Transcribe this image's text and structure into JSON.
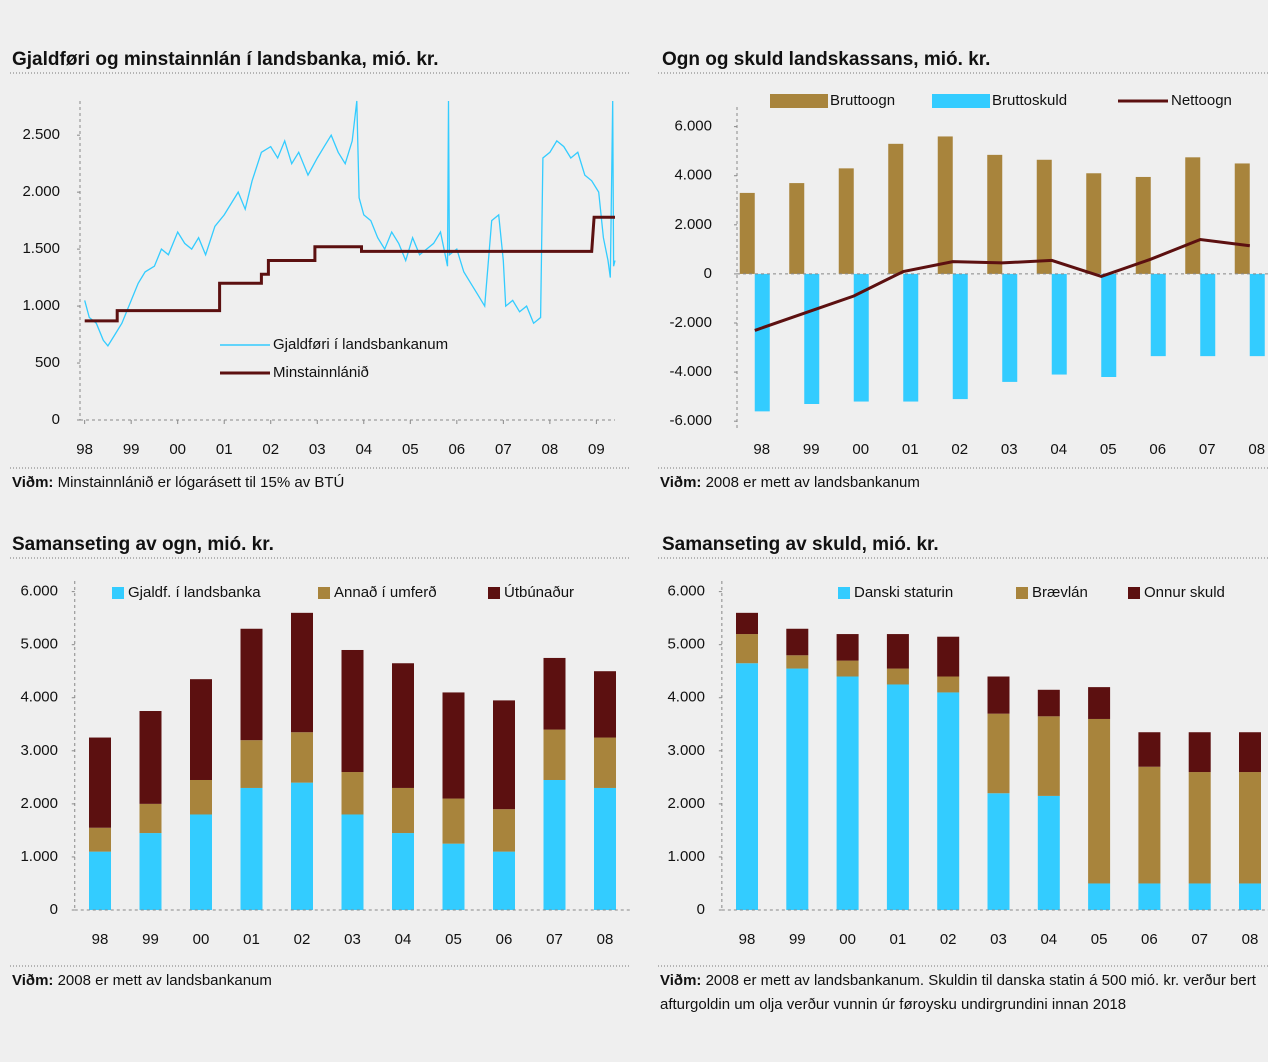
{
  "chart_data": [
    {
      "type": "line",
      "title": "Gjaldføri og minstainnlán í landsbanka, mió. kr.",
      "footnote": {
        "label": "Viðm:",
        "text": "Minstainnlánið er lógarásett til 15% av BTÚ"
      },
      "xlim": [
        1997.9,
        2009.4
      ],
      "xticks": [
        {
          "value": 1998,
          "label": "98"
        },
        {
          "value": 1999,
          "label": "99"
        },
        {
          "value": 2000,
          "label": "00"
        },
        {
          "value": 2001,
          "label": "01"
        },
        {
          "value": 2002,
          "label": "02"
        },
        {
          "value": 2003,
          "label": "03"
        },
        {
          "value": 2004,
          "label": "04"
        },
        {
          "value": 2005,
          "label": "05"
        },
        {
          "value": 2006,
          "label": "06"
        },
        {
          "value": 2007,
          "label": "07"
        },
        {
          "value": 2008,
          "label": "08"
        },
        {
          "value": 2009,
          "label": "09"
        }
      ],
      "ylim": [
        0,
        2800
      ],
      "yticks": [
        0,
        500,
        {
          "value": 1000,
          "label": "1.000"
        },
        {
          "value": 1500,
          "label": "1.500"
        },
        {
          "value": 2000,
          "label": "2.000"
        },
        {
          "value": 2500,
          "label": "2.500"
        }
      ],
      "series": [
        {
          "name": "Minstainnlánið",
          "color": "#5c1010",
          "x": [
            1998.0,
            1998.7,
            1998.7,
            2000.9,
            2000.9,
            2001.8,
            2001.8,
            2001.95,
            2001.95,
            2002.95,
            2002.95,
            2003.95,
            2003.95,
            2008.9,
            2008.95,
            2009.4
          ],
          "values": [
            870,
            870,
            960,
            960,
            1200,
            1200,
            1280,
            1280,
            1400,
            1400,
            1520,
            1520,
            1480,
            1480,
            1780,
            1780
          ]
        },
        {
          "name": "Gjaldføri í landsbankanum",
          "color": "#33ccff",
          "x": [
            1998.0,
            1998.1,
            1998.25,
            1998.4,
            1998.5,
            1998.65,
            1998.8,
            1999.0,
            1999.15,
            1999.3,
            1999.5,
            1999.65,
            1999.8,
            2000.0,
            2000.15,
            2000.3,
            2000.45,
            2000.6,
            2000.8,
            2001.0,
            2001.15,
            2001.3,
            2001.45,
            2001.6,
            2001.8,
            2002.0,
            2002.15,
            2002.3,
            2002.45,
            2002.6,
            2002.8,
            2003.0,
            2003.15,
            2003.3,
            2003.45,
            2003.6,
            2003.75,
            2003.85,
            2003.9,
            2004.0,
            2004.15,
            2004.3,
            2004.45,
            2004.6,
            2004.75,
            2004.9,
            2005.05,
            2005.2,
            2005.35,
            2005.5,
            2005.65,
            2005.8,
            2005.82,
            2005.84,
            2006.0,
            2006.15,
            2006.3,
            2006.45,
            2006.6,
            2006.75,
            2006.9,
            2007.0,
            2007.05,
            2007.2,
            2007.35,
            2007.5,
            2007.65,
            2007.8,
            2007.85,
            2008.0,
            2008.15,
            2008.3,
            2008.45,
            2008.6,
            2008.75,
            2008.9,
            2009.05,
            2009.15,
            2009.25,
            2009.3,
            2009.35,
            2009.37,
            2009.4
          ],
          "values": [
            1050,
            900,
            850,
            700,
            650,
            750,
            850,
            1050,
            1200,
            1300,
            1350,
            1500,
            1450,
            1650,
            1550,
            1500,
            1600,
            1450,
            1700,
            1800,
            1900,
            2000,
            1850,
            2100,
            2350,
            2400,
            2300,
            2450,
            2250,
            2350,
            2150,
            2300,
            2400,
            2500,
            2350,
            2250,
            2450,
            2800,
            1950,
            1800,
            1750,
            1600,
            1500,
            1650,
            1550,
            1400,
            1600,
            1450,
            1500,
            1550,
            1650,
            1350,
            2800,
            1450,
            1500,
            1300,
            1200,
            1100,
            1000,
            1750,
            1800,
            1400,
            1000,
            1050,
            950,
            1000,
            850,
            900,
            2300,
            2350,
            2450,
            2400,
            2300,
            2350,
            2150,
            2100,
            2000,
            1600,
            1400,
            1250,
            2800,
            1350,
            1400
          ]
        }
      ]
    },
    {
      "type": "bar",
      "title": "Ogn og skuld landskassans, mió. kr.",
      "footnote": {
        "label": "Viðm:",
        "text": "2008 er mett av landsbankanum"
      },
      "categories": [
        "98",
        "99",
        "00",
        "01",
        "02",
        "03",
        "04",
        "05",
        "06",
        "07",
        "08"
      ],
      "ylim": [
        -6400,
        6800
      ],
      "yticks": [
        {
          "value": -6000,
          "label": "-6.000"
        },
        {
          "value": -4000,
          "label": "-4.000"
        },
        {
          "value": -2000,
          "label": "-2.000"
        },
        0,
        {
          "value": 2000,
          "label": "2.000"
        },
        {
          "value": 4000,
          "label": "4.000"
        },
        {
          "value": 6000,
          "label": "6.000"
        }
      ],
      "series": [
        {
          "name": "Bruttoogn",
          "color": "#a8843c",
          "values": [
            3300,
            3700,
            4300,
            5300,
            5600,
            4850,
            4650,
            4100,
            3950,
            4750,
            4500
          ]
        },
        {
          "name": "Bruttoskuld",
          "color": "#33ccff",
          "values": [
            -5600,
            -5300,
            -5200,
            -5200,
            -5100,
            -4400,
            -4100,
            -4200,
            -3350,
            -3350,
            -3350
          ]
        },
        {
          "name": "Nettoogn",
          "color": "#5c1010",
          "type": "line",
          "values": [
            -2300,
            -1600,
            -900,
            100,
            500,
            450,
            550,
            -100,
            600,
            1400,
            1150
          ]
        }
      ]
    },
    {
      "type": "stacked_bar",
      "title": "Samanseting av ogn, mió. kr.",
      "footnote": {
        "label": "Viðm:",
        "text": "2008 er mett av landsbankanum"
      },
      "categories": [
        "98",
        "99",
        "00",
        "01",
        "02",
        "03",
        "04",
        "05",
        "06",
        "07",
        "08"
      ],
      "ylim": [
        0,
        6200
      ],
      "yticks": [
        0,
        {
          "value": 1000,
          "label": "1.000"
        },
        {
          "value": 2000,
          "label": "2.000"
        },
        {
          "value": 3000,
          "label": "3.000"
        },
        {
          "value": 4000,
          "label": "4.000"
        },
        {
          "value": 5000,
          "label": "5.000"
        },
        {
          "value": 6000,
          "label": "6.000"
        }
      ],
      "series": [
        {
          "name": "Gjaldf. í landsbanka",
          "color": "#33ccff",
          "values": [
            1100,
            1450,
            1800,
            2300,
            2400,
            1800,
            1450,
            1250,
            1100,
            2450,
            2300
          ]
        },
        {
          "name": "Annað í umferð",
          "color": "#a8843c",
          "values": [
            450,
            550,
            650,
            900,
            950,
            800,
            850,
            850,
            800,
            950,
            950
          ]
        },
        {
          "name": "Útbúnaður",
          "color": "#5c1010",
          "values": [
            1700,
            1750,
            1900,
            2100,
            2250,
            2300,
            2350,
            2000,
            2050,
            1350,
            1250
          ]
        }
      ]
    },
    {
      "type": "stacked_bar",
      "title": "Samanseting av skuld, mió. kr.",
      "footnote": {
        "label": "Viðm:",
        "text": "2008 er mett av landsbankanum. Skuldin til danska statin á 500 mió. kr. verður bert afturgoldin um olja verður vunnin úr føroysku undirgrundini innan 2018"
      },
      "categories": [
        "98",
        "99",
        "00",
        "01",
        "02",
        "03",
        "04",
        "05",
        "06",
        "07",
        "08"
      ],
      "ylim": [
        0,
        6200
      ],
      "yticks": [
        0,
        {
          "value": 1000,
          "label": "1.000"
        },
        {
          "value": 2000,
          "label": "2.000"
        },
        {
          "value": 3000,
          "label": "3.000"
        },
        {
          "value": 4000,
          "label": "4.000"
        },
        {
          "value": 5000,
          "label": "5.000"
        },
        {
          "value": 6000,
          "label": "6.000"
        }
      ],
      "series": [
        {
          "name": "Danski staturin",
          "color": "#33ccff",
          "values": [
            4650,
            4550,
            4400,
            4250,
            4100,
            2200,
            2150,
            500,
            500,
            500,
            500
          ]
        },
        {
          "name": "Brævlán",
          "color": "#a8843c",
          "values": [
            550,
            250,
            300,
            300,
            300,
            1500,
            1500,
            3100,
            2200,
            2100,
            2100
          ]
        },
        {
          "name": "Onnur skuld",
          "color": "#5c1010",
          "values": [
            400,
            500,
            500,
            650,
            750,
            700,
            500,
            600,
            650,
            750,
            750
          ]
        }
      ]
    }
  ]
}
